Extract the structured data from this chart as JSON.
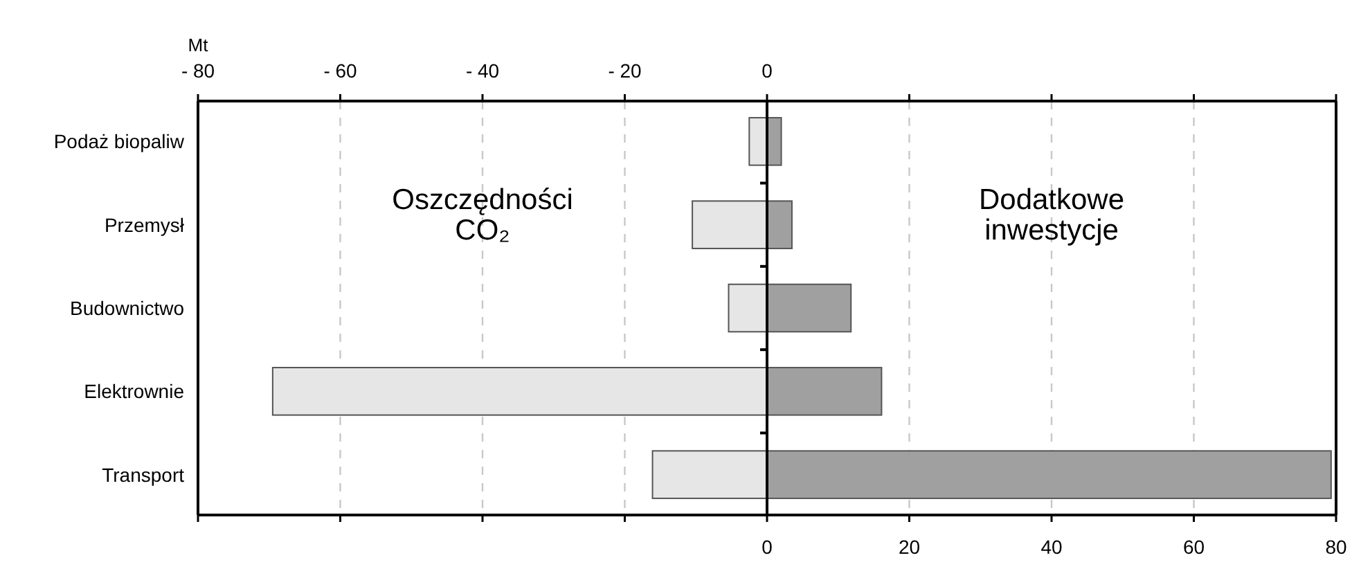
{
  "chart_data": {
    "type": "bar",
    "orientation": "horizontal",
    "stacked": true,
    "categories": [
      "Podaż biopaliw",
      "Przemysł",
      "Budownictwo",
      "Elektrownie",
      "Transport"
    ],
    "series": [
      {
        "color": "#e6e6e6",
        "values": [
          -2.5,
          -10.5,
          -5.4,
          -69.5,
          -16.1
        ]
      },
      {
        "color": "#a0a0a0",
        "values": [
          2,
          3.5,
          11.8,
          16.1,
          79.3
        ]
      }
    ],
    "xlim": [
      -80,
      80
    ],
    "xticks": [
      {
        "value": -80,
        "label": null
      },
      {
        "value": -60,
        "label": null
      },
      {
        "value": -40,
        "label": null
      },
      {
        "value": -20,
        "label": null
      },
      0,
      20,
      40,
      60,
      80
    ],
    "x2lim": [
      -80,
      80
    ],
    "x2ticks": [
      {
        "value": -80,
        "label": "- 80"
      },
      {
        "value": -60,
        "label": "- 60"
      },
      {
        "value": -40,
        "label": "- 40"
      },
      {
        "value": -20,
        "label": "- 20"
      },
      0,
      {
        "value": 20,
        "label": null
      },
      {
        "value": 40,
        "label": null
      },
      {
        "value": 60,
        "label": null
      },
      {
        "value": 80,
        "label": null
      }
    ],
    "x2label": "Mt",
    "grid": "x",
    "annotations": [
      "Oszczędności CO₂",
      "Dodatkowe inwestycje"
    ]
  }
}
